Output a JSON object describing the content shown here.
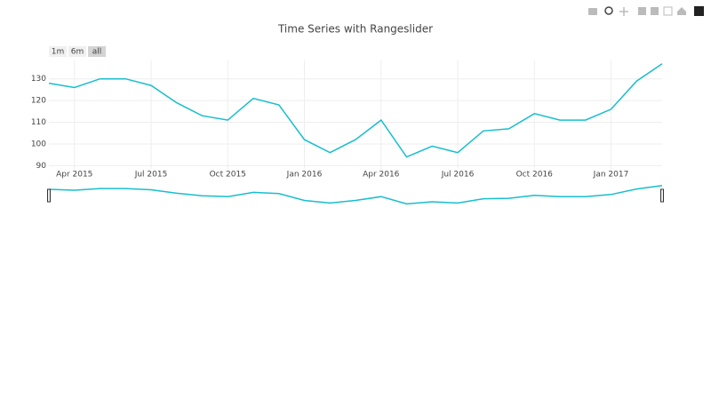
{
  "chart_data": {
    "type": "line",
    "title": "Time Series with Rangeslider",
    "buttons": [
      "1m",
      "6m",
      "all"
    ],
    "x": [
      "2015-03",
      "2015-04",
      "2015-05",
      "2015-06",
      "2015-07",
      "2015-08",
      "2015-09",
      "2015-10",
      "2015-11",
      "2015-12",
      "2016-01",
      "2016-02",
      "2016-03",
      "2016-04",
      "2016-05",
      "2016-06",
      "2016-07",
      "2016-08",
      "2016-09",
      "2016-10",
      "2016-11",
      "2016-12",
      "2017-01",
      "2017-02",
      "2017-03"
    ],
    "series": [
      {
        "color": "#17becf",
        "values": [
          128,
          126,
          130,
          130,
          127,
          119,
          113,
          111,
          121,
          118,
          102,
          96,
          102,
          111,
          94,
          99,
          96,
          106,
          107,
          114,
          111,
          111,
          116,
          129,
          137
        ]
      }
    ],
    "xticks": [
      {
        "value": "2015-04",
        "label": "Apr 2015"
      },
      {
        "value": "2015-07",
        "label": "Jul 2015"
      },
      {
        "value": "2015-10",
        "label": "Oct 2015"
      },
      {
        "value": "2016-01",
        "label": "Jan 2016"
      },
      {
        "value": "2016-04",
        "label": "Apr 2016"
      },
      {
        "value": "2016-07",
        "label": "Jul 2016"
      },
      {
        "value": "2016-10",
        "label": "Oct 2016"
      },
      {
        "value": "2017-01",
        "label": "Jan 2017"
      }
    ],
    "ylim": [
      88.5,
      138.5
    ],
    "yticks": [
      90,
      100,
      110,
      120,
      130
    ],
    "grid": true,
    "rangeslider": true
  }
}
